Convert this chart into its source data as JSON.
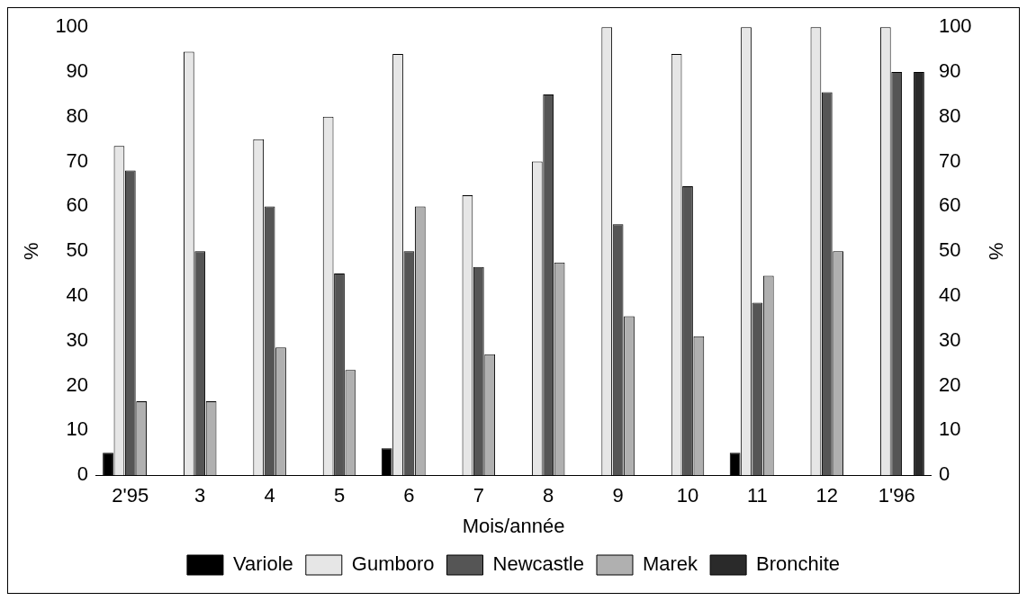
{
  "chart_data": {
    "type": "bar",
    "xlabel": "Mois/année",
    "ylabel": "%",
    "y2label": "%",
    "categories": [
      "2'95",
      "3",
      "4",
      "5",
      "6",
      "7",
      "8",
      "9",
      "10",
      "11",
      "12",
      "1'96"
    ],
    "series": [
      {
        "name": "Variole",
        "color": "#000000",
        "values": [
          5,
          0,
          0,
          0,
          6,
          0,
          0,
          0,
          0,
          5,
          0,
          0
        ]
      },
      {
        "name": "Gumboro",
        "color": "#e6e6e6",
        "values": [
          73.5,
          94.5,
          75,
          80,
          94,
          62.5,
          70,
          100,
          94,
          100,
          100,
          100
        ]
      },
      {
        "name": "Newcastle",
        "color": "#555555",
        "values": [
          68,
          50,
          60,
          45,
          50,
          46.5,
          85,
          56,
          64.5,
          38.5,
          85.5,
          90
        ]
      },
      {
        "name": "Marek",
        "color": "#b0b0b0",
        "values": [
          16.5,
          16.5,
          28.5,
          23.5,
          60,
          27,
          47.5,
          35.5,
          31,
          44.5,
          50,
          0
        ]
      },
      {
        "name": "Bronchite",
        "color": "#2a2a2a",
        "values": [
          0,
          0,
          0,
          0,
          0,
          0,
          0,
          0,
          0,
          0,
          0,
          90
        ]
      }
    ],
    "ylim": [
      0,
      100
    ],
    "yticks": [
      0,
      10,
      20,
      30,
      40,
      50,
      60,
      70,
      80,
      90,
      100
    ],
    "y2lim": [
      0,
      100
    ],
    "y2ticks": [
      0,
      10,
      20,
      30,
      40,
      50,
      60,
      70,
      80,
      90,
      100
    ],
    "grid": false,
    "legend": "bottom"
  }
}
